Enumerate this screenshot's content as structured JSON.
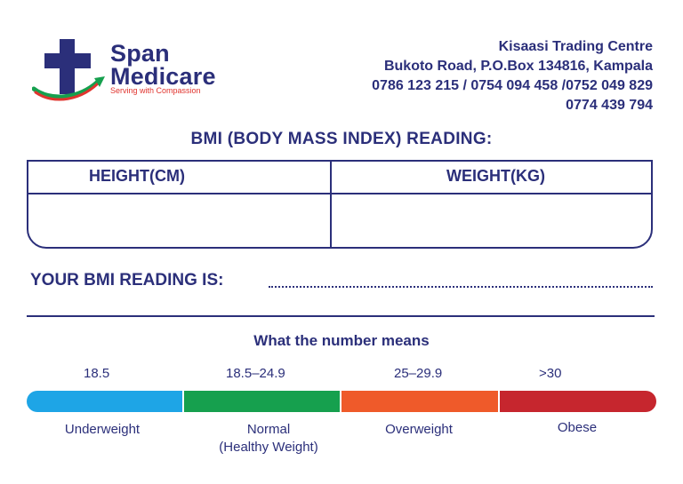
{
  "brand": {
    "name_line1": "Span",
    "name_line2": "Medicare",
    "tagline": "Serving with Compassion",
    "colors": {
      "primary": "#2b2f7a",
      "accent_red": "#e0342e",
      "accent_green": "#16a04e"
    }
  },
  "address": {
    "line1": "Kisaasi Trading Centre",
    "line2": "Bukoto Road, P.O.Box 134816, Kampala",
    "phones1": "0786 123 215 / 0754 094 458 /0752 049 829",
    "phones2": "0774 439 794"
  },
  "form": {
    "title": "BMI (BODY MASS INDEX) READING:",
    "headers": [
      "HEIGHT(CM)",
      "WEIGHT(KG)"
    ],
    "values": [
      "",
      ""
    ],
    "reading_label": "YOUR BMI READING IS:",
    "reading_value": ""
  },
  "scale": {
    "title": "What the number means",
    "ranges": [
      "18.5",
      "18.5–24.9",
      "25–29.9",
      ">30"
    ],
    "categories": [
      {
        "line1": "Underweight",
        "line2": ""
      },
      {
        "line1": "Normal",
        "line2": "(Healthy Weight)"
      },
      {
        "line1": "Overweight",
        "line2": ""
      },
      {
        "line1": "Obese",
        "line2": ""
      }
    ],
    "colors": [
      "#1ea5e6",
      "#16a04e",
      "#ef5a2a",
      "#c6262e"
    ]
  }
}
